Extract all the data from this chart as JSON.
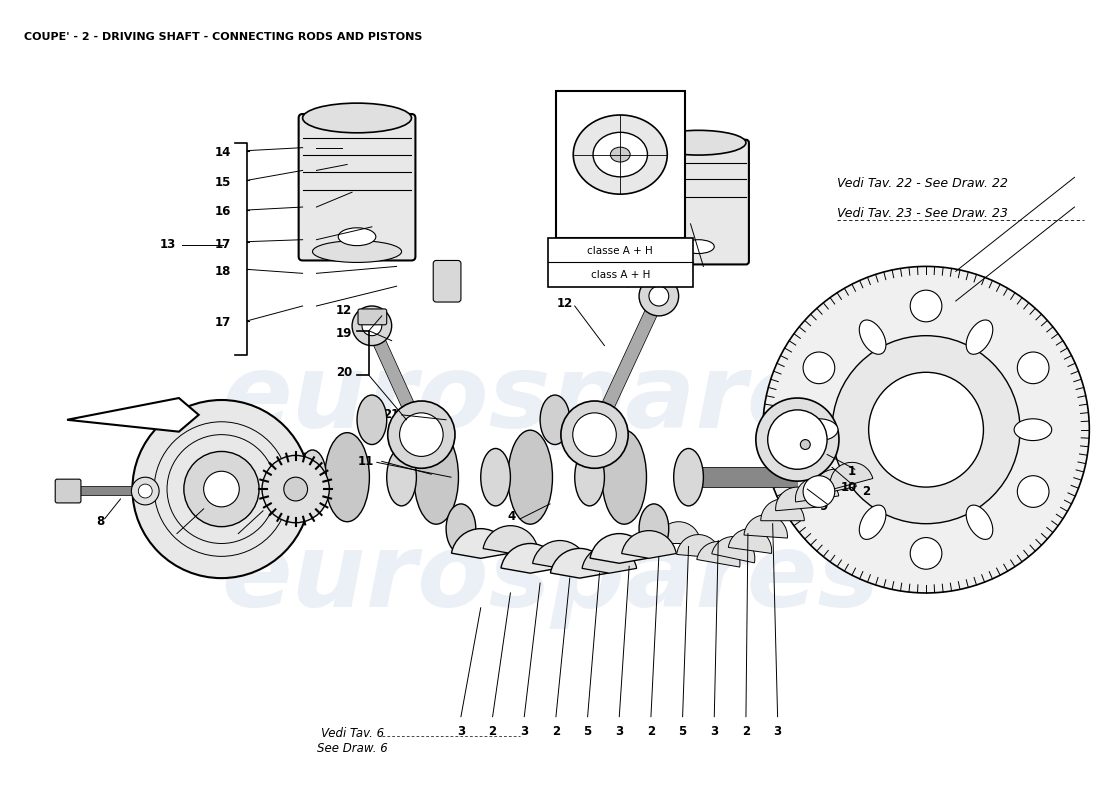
{
  "title": "COUPE' - 2 - DRIVING SHAFT - CONNECTING RODS AND PISTONS",
  "bg_color": "#ffffff",
  "watermark": "eurospares",
  "wm_color": "#c8d4e8",
  "wm_alpha": 0.35,
  "label_fs": 8.5,
  "note_fs": 7.5,
  "vedi6_text": "Vedi Tav. 6\nSee Draw. 6",
  "vedi22_text": "Vedi Tav. 22 - See Draw. 22",
  "vedi23_text": "Vedi Tav. 23 - See Draw. 23",
  "classe_text1": "classe A + H",
  "classe_text2": "class A + H"
}
